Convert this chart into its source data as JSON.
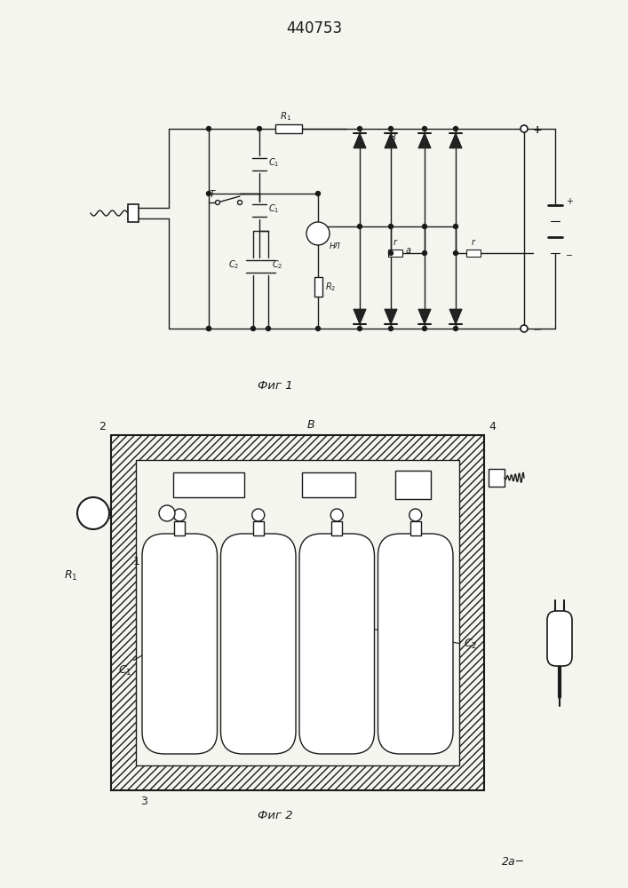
{
  "title": "440753",
  "bg_color": "#f5f5f0",
  "line_color": "#1a1a1a",
  "fig1_caption": "Фиг 1",
  "fig2_caption": "Фиг 2"
}
